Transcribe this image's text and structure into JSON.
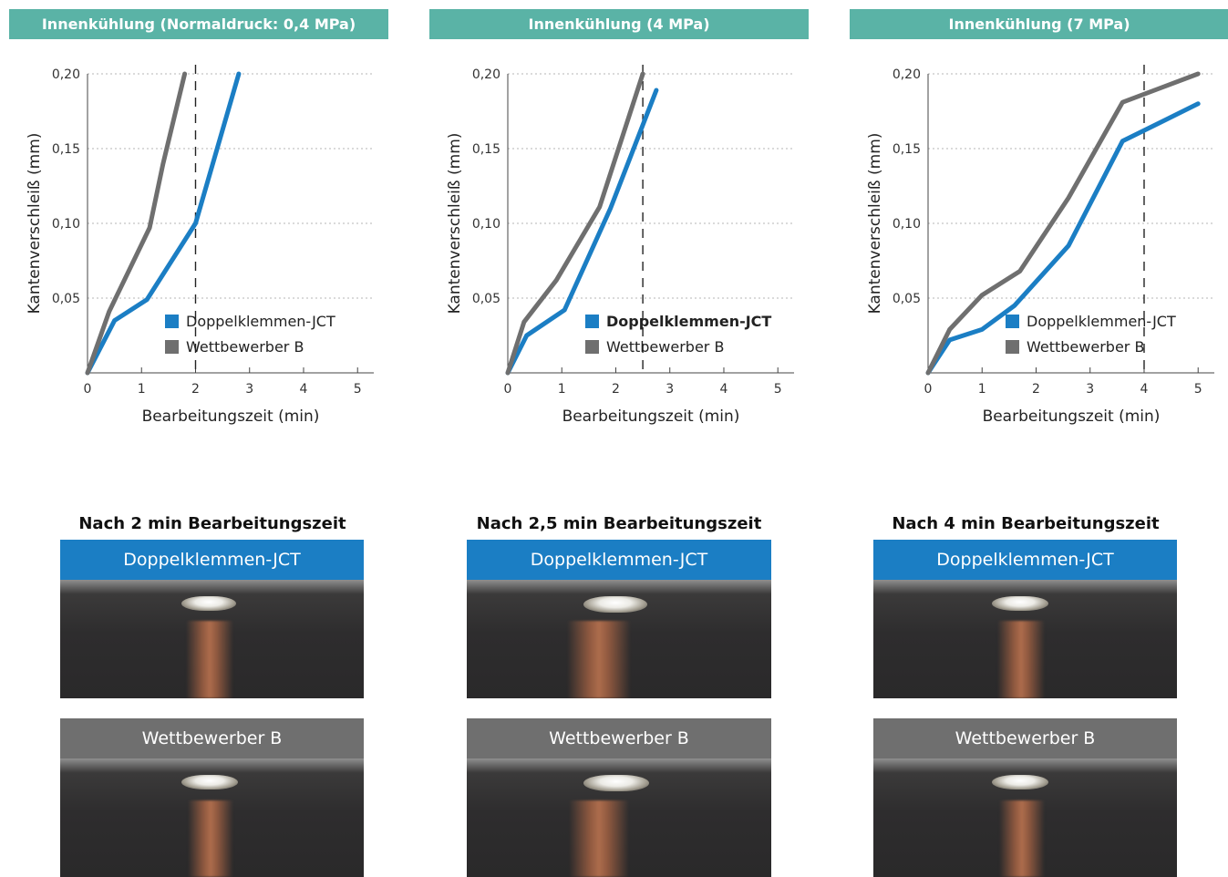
{
  "chart_data": [
    {
      "type": "line",
      "title": "Innenkühlung (Normaldruck: 0,4 MPa)",
      "xlabel": "Bearbeitungszeit (min)",
      "ylabel": "Kantenverschleiß (mm)",
      "xlim": [
        0,
        5.3
      ],
      "ylim": [
        0,
        0.2
      ],
      "x_ticks": [
        "0",
        "1",
        "2",
        "3",
        "4",
        "5"
      ],
      "y_ticks": [
        "0,05",
        "0,10",
        "0,15",
        "0,20"
      ],
      "marker_x": 2,
      "grid": "horizontal dotted",
      "legend_position": "bottom-right",
      "legend_bold": false,
      "series": [
        {
          "name": "Doppelklemmen-JCT",
          "color": "#1b7ec4",
          "points": [
            [
              0,
              0
            ],
            [
              0.5,
              0.035
            ],
            [
              1.1,
              0.049
            ],
            [
              2.0,
              0.1
            ],
            [
              2.8,
              0.2
            ]
          ]
        },
        {
          "name": "Wettbewerber B",
          "color": "#6f6f6f",
          "points": [
            [
              0,
              0
            ],
            [
              0.4,
              0.041
            ],
            [
              1.15,
              0.097
            ],
            [
              1.4,
              0.14
            ],
            [
              1.8,
              0.2
            ]
          ]
        }
      ]
    },
    {
      "type": "line",
      "title": "Innenkühlung (4 MPa)",
      "xlabel": "Bearbeitungszeit (min)",
      "ylabel": "Kantenverschleiß (mm)",
      "xlim": [
        0,
        5.3
      ],
      "ylim": [
        0,
        0.2
      ],
      "x_ticks": [
        "0",
        "1",
        "2",
        "3",
        "4",
        "5"
      ],
      "y_ticks": [
        "0,05",
        "0,10",
        "0,15",
        "0,20"
      ],
      "marker_x": 2.5,
      "grid": "horizontal dotted",
      "legend_position": "bottom-right",
      "legend_bold": true,
      "series": [
        {
          "name": "Doppelklemmen-JCT",
          "color": "#1b7ec4",
          "points": [
            [
              0,
              0
            ],
            [
              0.35,
              0.025
            ],
            [
              1.05,
              0.042
            ],
            [
              1.9,
              0.11
            ],
            [
              2.75,
              0.189
            ]
          ]
        },
        {
          "name": "Wettbewerber B",
          "color": "#6f6f6f",
          "points": [
            [
              0,
              0
            ],
            [
              0.3,
              0.034
            ],
            [
              0.9,
              0.062
            ],
            [
              1.7,
              0.111
            ],
            [
              2.5,
              0.2
            ]
          ]
        }
      ]
    },
    {
      "type": "line",
      "title": "Innenkühlung (7 MPa)",
      "xlabel": "Bearbeitungszeit (min)",
      "ylabel": "Kantenverschleiß (mm)",
      "xlim": [
        0,
        5.3
      ],
      "ylim": [
        0,
        0.2
      ],
      "x_ticks": [
        "0",
        "1",
        "2",
        "3",
        "4",
        "5"
      ],
      "y_ticks": [
        "0,05",
        "0,10",
        "0,15",
        "0,20"
      ],
      "marker_x": 4,
      "grid": "horizontal dotted",
      "legend_position": "bottom-right",
      "legend_bold": false,
      "series": [
        {
          "name": "Doppelklemmen-JCT",
          "color": "#1b7ec4",
          "points": [
            [
              0,
              0
            ],
            [
              0.4,
              0.022
            ],
            [
              1.0,
              0.029
            ],
            [
              1.6,
              0.045
            ],
            [
              2.6,
              0.085
            ],
            [
              3.6,
              0.155
            ],
            [
              5.0,
              0.18
            ]
          ]
        },
        {
          "name": "Wettbewerber B",
          "color": "#6f6f6f",
          "points": [
            [
              0,
              0
            ],
            [
              0.4,
              0.029
            ],
            [
              1.0,
              0.052
            ],
            [
              1.7,
              0.068
            ],
            [
              2.6,
              0.117
            ],
            [
              3.6,
              0.181
            ],
            [
              5.0,
              0.2
            ]
          ]
        }
      ]
    }
  ],
  "photos": [
    {
      "title": "Nach 2 min Bearbeitungszeit",
      "label_top": "Doppelklemmen-JCT",
      "label_bottom": "Wettbewerber B"
    },
    {
      "title": "Nach 2,5 min Bearbeitungszeit",
      "label_top": "Doppelklemmen-JCT",
      "label_bottom": "Wettbewerber B"
    },
    {
      "title": "Nach 4 min Bearbeitungszeit",
      "label_top": "Doppelklemmen-JCT",
      "label_bottom": "Wettbewerber B"
    }
  ],
  "colors": {
    "header_teal": "#5ab3a6",
    "jct_blue": "#1b7ec4",
    "competitor_gray": "#6f6f6f"
  }
}
